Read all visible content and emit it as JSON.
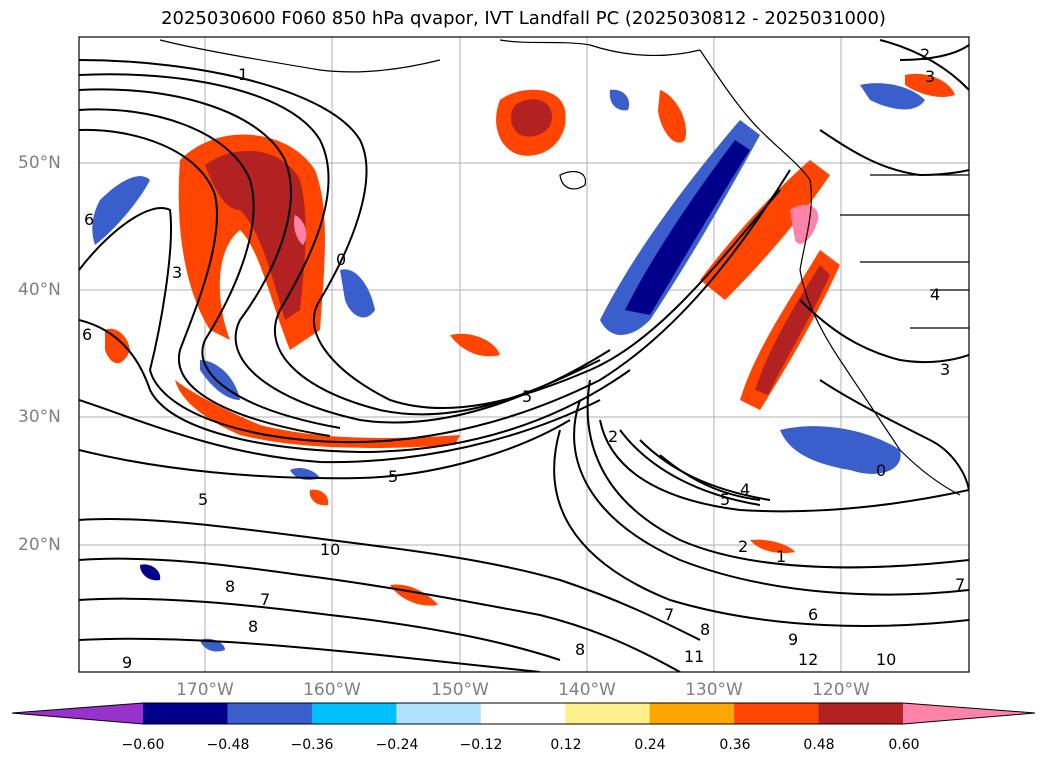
{
  "title": "2025030600 F060 850 hPa qvapor, IVT Landfall PC (2025030812 - 2025031000)",
  "map": {
    "lat_labels": [
      "50°N",
      "40°N",
      "30°N",
      "20°N"
    ],
    "lon_labels": [
      "170°W",
      "160°W",
      "150°W",
      "140°W",
      "130°W",
      "120°W"
    ],
    "contour_labels": [
      "1",
      "2",
      "3",
      "0",
      "5",
      "5",
      "4",
      "5",
      "2",
      "1",
      "6",
      "7",
      "8",
      "9",
      "10",
      "11",
      "12",
      "8",
      "9",
      "10",
      "8",
      "7",
      "6",
      "3",
      "2",
      "0",
      "3",
      "4",
      "7",
      "8",
      "5",
      "6"
    ]
  },
  "colorbar": {
    "ticks": [
      "−0.60",
      "−0.48",
      "−0.36",
      "−0.24",
      "−0.12",
      "0.12",
      "0.24",
      "0.36",
      "0.48",
      "0.60"
    ],
    "colors": [
      "#9932cc",
      "#00008b",
      "#3a5fcd",
      "#00bfff",
      "#b0e2ff",
      "#ffffff",
      "#fff08c",
      "#ffa500",
      "#ff4500",
      "#b22222",
      "#ff82ab"
    ]
  }
}
